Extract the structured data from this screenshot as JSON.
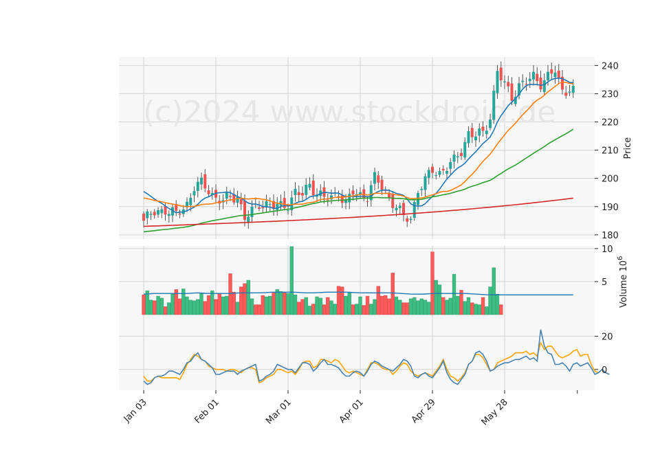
{
  "watermark": "(c)2024 www.stockdroid.de",
  "chart_data": {
    "type": "candlestick",
    "x_tick_labels": [
      "Jan 03",
      "Feb 01",
      "Mar 01",
      "Apr 01",
      "Apr 29",
      "May 28"
    ],
    "x_tick_index": [
      0,
      20,
      40,
      60,
      80,
      100
    ],
    "n_days": 120,
    "colors": {
      "up": "#26a69a",
      "down": "#ef5350",
      "up_vol": "#3dbd82",
      "down_vol": "#ff5a5a",
      "ma_fast": "#1f77b4",
      "ma_mid": "#ff7f0e",
      "ma_slow": "#2ca02c",
      "ma_long": "#d62728",
      "osc_a": "#4682b4",
      "osc_b": "#ffa500"
    },
    "price_panel": {
      "ylabel": "Price",
      "yticks": [
        180,
        190,
        200,
        210,
        220,
        230,
        240
      ],
      "ylim": [
        178.5,
        243
      ],
      "key_closes": [
        [
          0,
          185
        ],
        [
          3,
          188
        ],
        [
          6,
          189
        ],
        [
          9,
          187
        ],
        [
          12,
          191
        ],
        [
          14,
          197
        ],
        [
          16,
          198
        ],
        [
          18,
          196
        ],
        [
          20,
          193
        ],
        [
          22,
          192
        ],
        [
          24,
          193
        ],
        [
          26,
          194
        ],
        [
          28,
          186
        ],
        [
          30,
          188
        ],
        [
          32,
          191
        ],
        [
          34,
          191
        ],
        [
          36,
          190
        ],
        [
          38,
          190
        ],
        [
          40,
          191
        ],
        [
          42,
          195
        ],
        [
          44,
          194
        ],
        [
          46,
          198
        ],
        [
          48,
          195
        ],
        [
          50,
          193
        ],
        [
          52,
          193
        ],
        [
          54,
          195
        ],
        [
          56,
          191
        ],
        [
          58,
          195
        ],
        [
          60,
          194
        ],
        [
          62,
          194
        ],
        [
          64,
          200
        ],
        [
          66,
          197
        ],
        [
          68,
          193
        ],
        [
          70,
          190
        ],
        [
          72,
          186
        ],
        [
          74,
          186
        ],
        [
          76,
          196
        ],
        [
          78,
          199
        ],
        [
          80,
          203
        ],
        [
          82,
          202
        ],
        [
          84,
          204
        ],
        [
          86,
          206
        ],
        [
          88,
          210
        ],
        [
          90,
          216
        ],
        [
          92,
          215
        ],
        [
          94,
          216
        ],
        [
          96,
          222
        ],
        [
          98,
          238
        ],
        [
          100,
          233
        ],
        [
          102,
          229
        ],
        [
          104,
          233
        ],
        [
          106,
          234
        ],
        [
          108,
          236
        ],
        [
          110,
          234
        ],
        [
          112,
          236
        ],
        [
          114,
          238
        ],
        [
          116,
          231
        ],
        [
          118,
          232
        ],
        [
          120,
          230
        ]
      ],
      "ma_fast_start": 196.5,
      "ma_mid_start": 193.5,
      "ma_slow_start": 181.0,
      "ma_long_start": 183.0,
      "ma_long_end": 193.0
    },
    "volume_panel": {
      "ylabel": "Volume  10^6",
      "yticks": [
        5,
        10
      ],
      "ylim": [
        0,
        10.4
      ],
      "values": [
        3.0,
        3.6,
        2.2,
        2.1,
        2.8,
        2.5,
        1.2,
        1.8,
        3.1,
        3.8,
        2.4,
        3.9,
        2.7,
        2.2,
        2.1,
        2.3,
        3.2,
        2.0,
        2.9,
        3.6,
        2.3,
        3.2,
        2.7,
        2.8,
        6.2,
        3.4,
        1.9,
        4.2,
        4.7,
        5.2,
        2.4,
        1.5,
        1.5,
        2.9,
        2.7,
        2.8,
        3.4,
        3.8,
        3.5,
        3.4,
        3.2,
        10.3,
        3.0,
        1.9,
        2.3,
        2.6,
        1.3,
        1.6,
        2.7,
        2.5,
        1.5,
        2.6,
        2.1,
        1.6,
        4.3,
        4.2,
        2.8,
        3.3,
        1.5,
        1.6,
        2.7,
        1.4,
        2.8,
        1.6,
        2.3,
        4.3,
        2.8,
        2.9,
        2.4,
        6.3,
        2.7,
        2.2,
        1.8,
        1.8,
        2.4,
        2.6,
        2.1,
        2.4,
        2.2,
        1.9,
        9.5,
        5.2,
        4.5,
        2.6,
        2.2,
        2.5,
        6.1,
        2.8,
        3.7,
        2.0,
        2.6,
        1.8,
        1.6,
        1.5,
        2.6,
        1.2,
        4.2,
        7.1,
        3.1,
        1.5
      ],
      "avg": [
        3.1,
        3.2,
        3.2,
        3.2,
        3.2,
        3.3,
        3.2,
        3.2,
        3.2,
        3.3,
        3.3,
        3.3,
        3.4,
        3.4,
        3.4,
        3.3,
        3.3,
        3.4,
        3.4,
        3.4,
        3.3,
        3.3,
        3.3,
        3.3,
        3.2,
        3.1,
        3.1,
        3.2,
        3.2,
        3.2,
        3.2,
        3.1,
        3.0,
        3.0,
        3.0,
        3.0,
        3.0,
        3.0,
        3.0,
        3.0,
        3.0
      ]
    },
    "oscillator_panel": {
      "yticks": [
        0,
        20
      ],
      "ylim": [
        -12.5,
        33
      ],
      "line_a": [
        -7,
        -9,
        -8,
        -5,
        -4,
        -4,
        -3,
        -1,
        -1,
        -2,
        -3,
        0,
        4,
        5,
        8,
        10,
        6,
        5,
        3,
        1,
        -3,
        -3,
        -2,
        -1,
        -1,
        -1,
        -3,
        -1,
        0,
        1,
        2,
        3,
        -7,
        -6,
        -4,
        -3,
        -1,
        3,
        2,
        1,
        0,
        0,
        -2,
        1,
        4,
        4,
        3,
        -1,
        1,
        4,
        6,
        3,
        3,
        2,
        1,
        -2,
        -4,
        -4,
        -2,
        -1,
        -2,
        -4,
        -1,
        3,
        5,
        4,
        2,
        1,
        0,
        -1,
        1,
        3,
        6,
        5,
        2,
        -4,
        -5,
        -3,
        -2,
        -4,
        -5,
        -2,
        1,
        5,
        -2,
        -6,
        -8,
        -9,
        -6,
        -3,
        3,
        5,
        10,
        11,
        9,
        5,
        -1,
        0,
        2,
        3,
        4,
        4,
        5,
        6,
        6,
        7,
        8,
        6,
        7,
        5,
        24,
        14,
        10,
        9,
        3,
        3,
        4,
        2,
        -1,
        3,
        4,
        2,
        3,
        4,
        1,
        -3,
        -2,
        0,
        -2,
        -3
      ],
      "line_b": [
        -4,
        -7,
        -7,
        -5,
        -4,
        -5,
        -5,
        -5,
        -5,
        -5,
        -6,
        -2,
        3,
        6,
        9,
        8,
        6,
        5,
        2,
        1,
        0,
        0,
        0,
        -1,
        0,
        0,
        -1,
        -2,
        0,
        1,
        1,
        0,
        -8,
        -7,
        -5,
        -4,
        -3,
        0,
        0,
        -1,
        -2,
        -1,
        -3,
        0,
        4,
        5,
        5,
        1,
        2,
        6,
        6,
        5,
        4,
        6,
        5,
        2,
        -1,
        -2,
        -1,
        -2,
        -3,
        -4,
        0,
        4,
        4,
        3,
        1,
        0,
        0,
        -3,
        -1,
        2,
        4,
        3,
        -1,
        -3,
        -4,
        -3,
        -2,
        -3,
        -4,
        -1,
        2,
        6,
        0,
        -4,
        -5,
        -7,
        -5,
        -2,
        3,
        5,
        9,
        9,
        7,
        3,
        -1,
        0,
        4,
        5,
        6,
        7,
        8,
        10,
        10,
        10,
        11,
        9,
        10,
        8,
        16,
        12,
        14,
        14,
        11,
        8,
        7,
        8,
        9,
        11,
        12,
        8,
        9,
        9,
        3,
        -1,
        -2,
        0,
        -2,
        -3
      ]
    }
  }
}
